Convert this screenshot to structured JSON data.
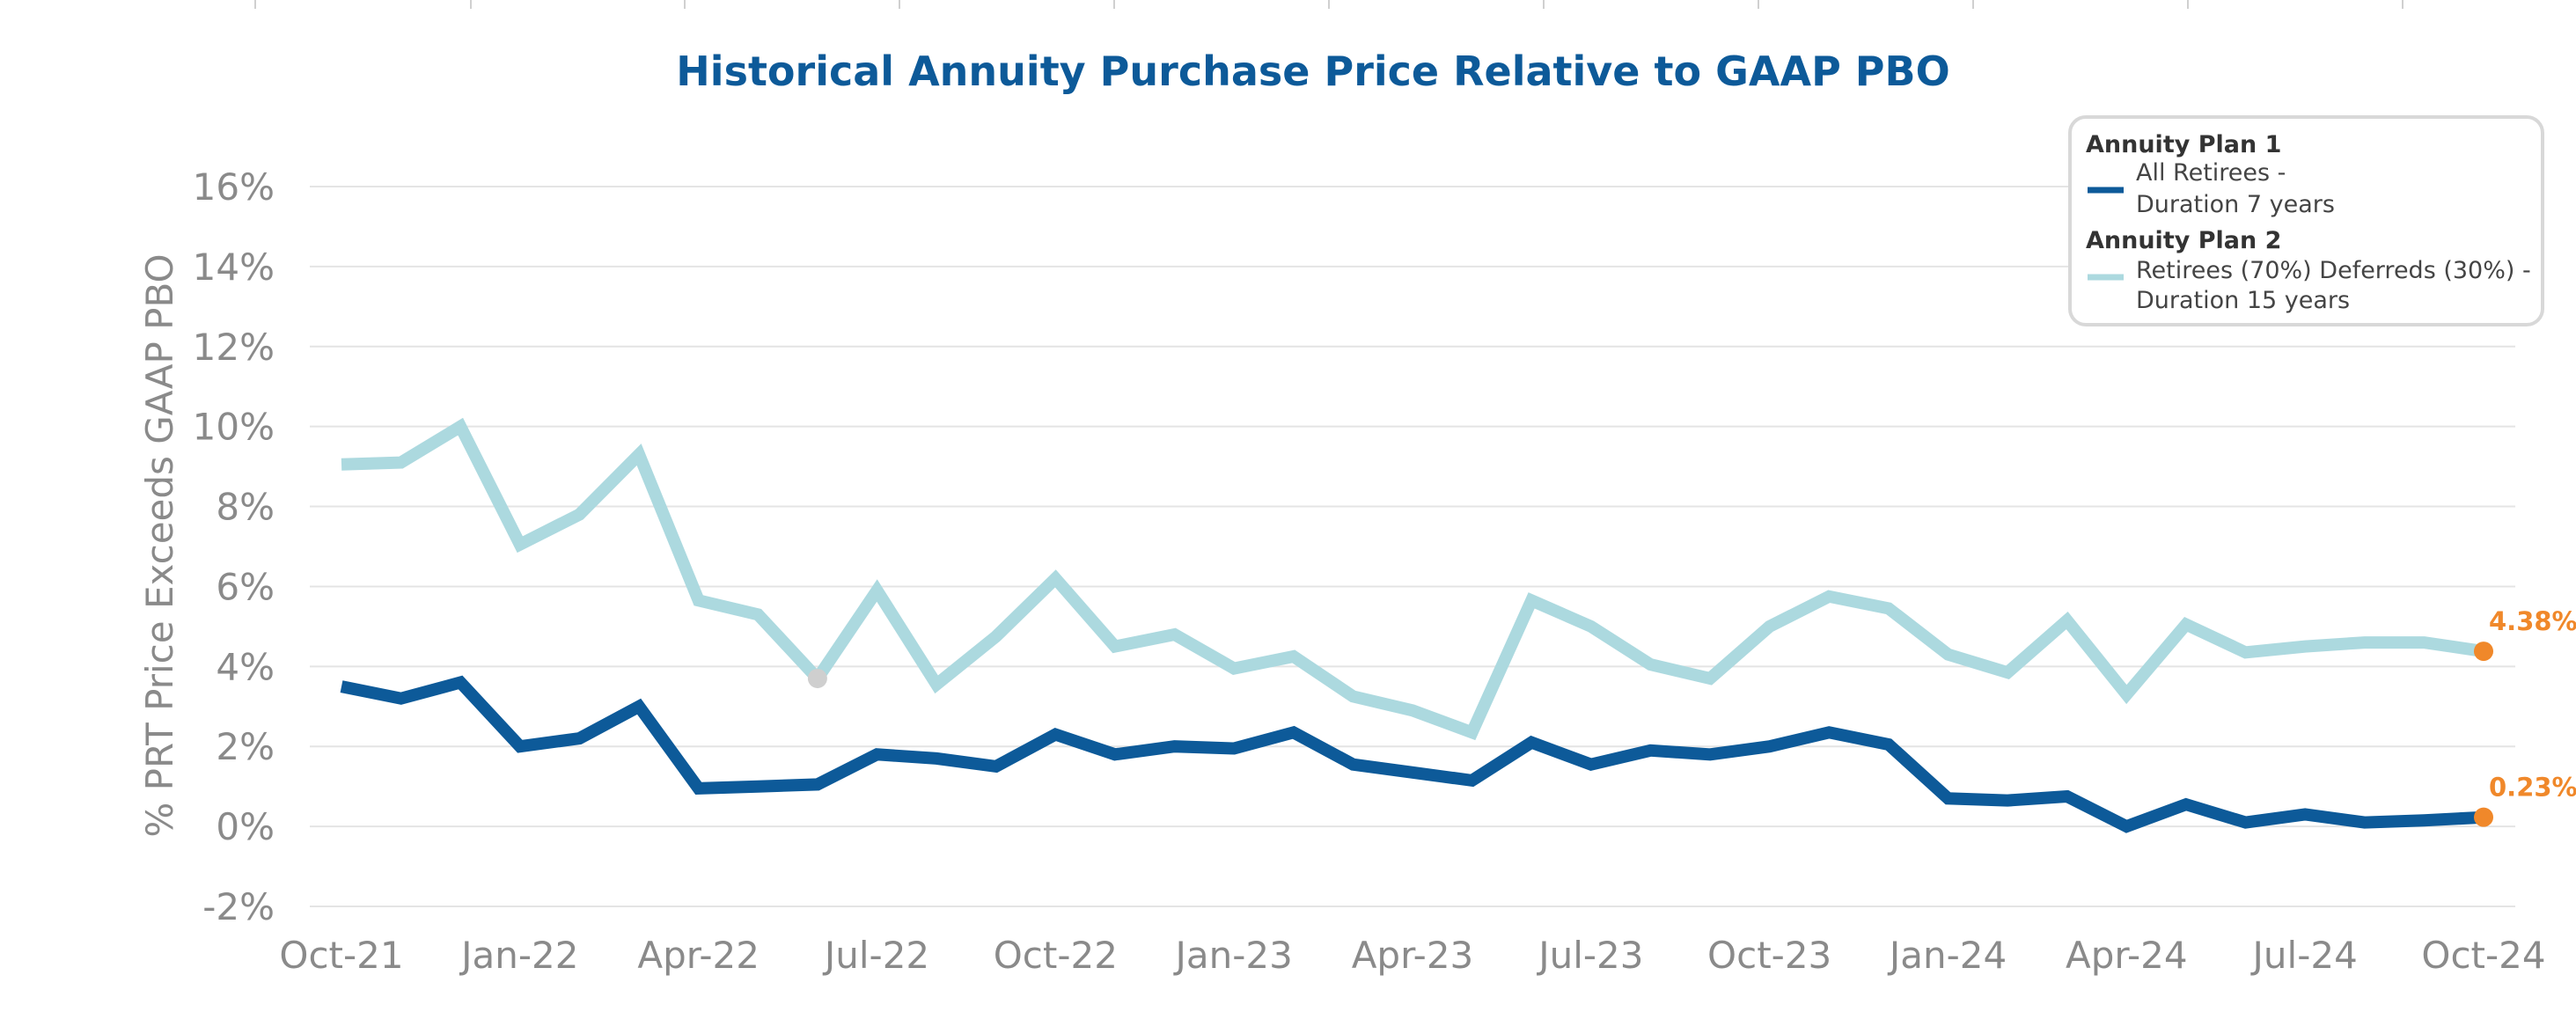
{
  "chart_data": {
    "type": "line",
    "title": "Historical Annuity Purchase Price Relative to GAAP PBO",
    "xlabel": "",
    "ylabel": "% PRT Price Exceeds GAAP PBO",
    "ylim": [
      -2,
      16
    ],
    "yticks": [
      -2,
      0,
      2,
      4,
      6,
      8,
      10,
      12,
      14,
      16
    ],
    "ytick_labels": [
      "-2%",
      "0%",
      "2%",
      "4%",
      "6%",
      "8%",
      "10%",
      "12%",
      "14%",
      "16%"
    ],
    "x_tick_labels": [
      "Oct-21",
      "Jan-22",
      "Apr-22",
      "Jul-22",
      "Oct-22",
      "Jan-23",
      "Apr-23",
      "Jul-23",
      "Oct-23",
      "Jan-24",
      "Apr-24",
      "Jul-24",
      "Oct-24"
    ],
    "x_months": [
      "Oct-21",
      "Nov-21",
      "Dec-21",
      "Jan-22",
      "Feb-22",
      "Mar-22",
      "Apr-22",
      "May-22",
      "Jun-22",
      "Jul-22",
      "Aug-22",
      "Sep-22",
      "Oct-22",
      "Nov-22",
      "Dec-22",
      "Jan-23",
      "Feb-23",
      "Mar-23",
      "Apr-23",
      "May-23",
      "Jun-23",
      "Jul-23",
      "Aug-23",
      "Sep-23",
      "Oct-23",
      "Nov-23",
      "Dec-23",
      "Jan-24",
      "Feb-24",
      "Mar-24",
      "Apr-24",
      "May-24",
      "Jun-24",
      "Jul-24",
      "Aug-24",
      "Sep-24",
      "Oct-24"
    ],
    "grid": true,
    "legend": {
      "placement": "top-right",
      "groups": [
        {
          "heading": "Annuity Plan 1",
          "line1": "All Retirees -",
          "line2": "Duration 7 years"
        },
        {
          "heading": "Annuity Plan 2",
          "line1": "Retirees (70%) Deferreds (30%) -",
          "line2": "Duration 15 years"
        }
      ]
    },
    "series": [
      {
        "name": "Annuity Plan 1",
        "color": "#0d5a99",
        "values": [
          3.5,
          3.2,
          3.6,
          2.0,
          2.2,
          3.0,
          0.95,
          1.0,
          1.05,
          1.8,
          1.7,
          1.5,
          2.3,
          1.8,
          2.0,
          1.95,
          2.35,
          1.55,
          1.35,
          1.15,
          2.1,
          1.55,
          1.9,
          1.8,
          2.0,
          2.35,
          2.05,
          0.7,
          0.65,
          0.75,
          0.0,
          0.55,
          0.1,
          0.3,
          0.1,
          0.15,
          0.23
        ],
        "end_label": "0.23%"
      },
      {
        "name": "Annuity Plan 2",
        "color": "#acd9df",
        "values": [
          9.05,
          9.1,
          10.0,
          7.05,
          7.8,
          9.3,
          5.65,
          5.3,
          3.7,
          5.9,
          3.55,
          4.75,
          6.2,
          4.5,
          4.8,
          3.95,
          4.25,
          3.25,
          2.9,
          2.35,
          5.65,
          5.0,
          4.05,
          3.7,
          5.0,
          5.75,
          5.45,
          4.3,
          3.85,
          5.15,
          3.3,
          5.05,
          4.35,
          4.5,
          4.6,
          4.6,
          4.38
        ],
        "end_label": "4.38%"
      }
    ],
    "highlight_color": "#f0882a"
  }
}
